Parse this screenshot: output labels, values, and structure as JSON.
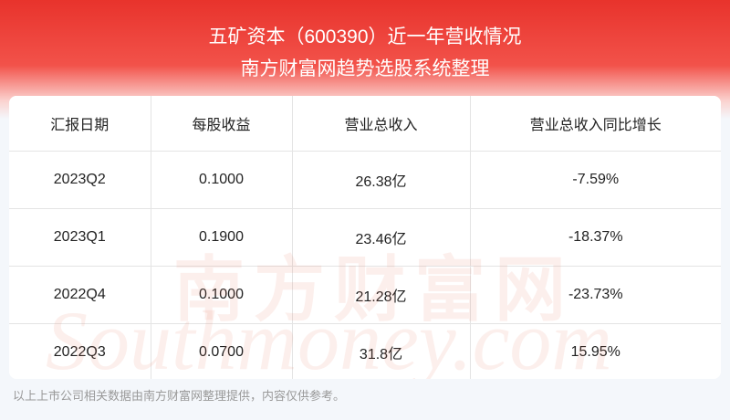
{
  "header": {
    "title": "五矿资本（600390）近一年营收情况",
    "subtitle": "南方财富网趋势选股系统整理"
  },
  "table": {
    "columns": [
      "汇报日期",
      "每股收益",
      "营业总收入",
      "营业总收入同比增长"
    ],
    "rows": [
      [
        "2023Q2",
        "0.1000",
        "26.38亿",
        "-7.59%"
      ],
      [
        "2023Q1",
        "0.1900",
        "23.46亿",
        "-18.37%"
      ],
      [
        "2022Q4",
        "0.1000",
        "21.28亿",
        "-23.73%"
      ],
      [
        "2022Q3",
        "0.0700",
        "31.8亿",
        "15.95%"
      ]
    ]
  },
  "watermark": {
    "cn": "南方财富网",
    "en": "Southmoney.com"
  },
  "footer": {
    "note": "以上上市公司相关数据由南方财富网整理提供，内容仅供参考。"
  }
}
